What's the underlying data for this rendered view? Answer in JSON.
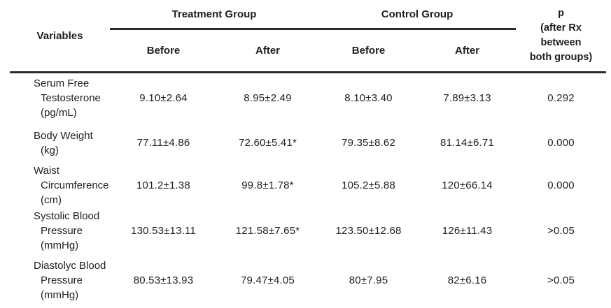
{
  "page": {
    "background": "#ffffff",
    "text_color": "#1f1f1f",
    "rule_color": "#2b2b2b"
  },
  "table": {
    "header": {
      "variables": "Variables",
      "groups": [
        {
          "label": "Treatment Group",
          "before": "Before",
          "after": "After"
        },
        {
          "label": "Control Group",
          "before": "Before",
          "after": "After"
        }
      ],
      "p": "p\n(after Rx\nbetween\nboth groups)"
    },
    "rows": [
      {
        "variable": "Serum Free\nTestosterone\n(pg/mL)",
        "values": [
          "9.10±2.64",
          "8.95±2.49",
          "8.10±3.40",
          "7.89±3.13",
          "0.292"
        ]
      },
      {
        "variable": "Body Weight\n(kg)",
        "values": [
          "77.11±4.86",
          "72.60±5.41*",
          "79.35±8.62",
          "81.14±6.71",
          "0.000"
        ]
      },
      {
        "variable": "Waist\nCircumference\n(cm)",
        "values": [
          "101.2±1.38",
          "99.8±1.78*",
          "105.2±5.88",
          "120±66.14",
          "0.000"
        ]
      },
      {
        "variable": "Systolic Blood\nPressure\n(mmHg)",
        "values": [
          "130.53±13.11",
          "121.58±7.65*",
          "123.50±12.68",
          "126±11.43",
          ">0.05"
        ]
      },
      {
        "variable": "Diastolyc Blood\nPressure\n(mmHg)",
        "values": [
          "80.53±13.93",
          "79.47±4.05",
          "80±7.95",
          "82±6.16",
          ">0.05"
        ]
      }
    ]
  }
}
